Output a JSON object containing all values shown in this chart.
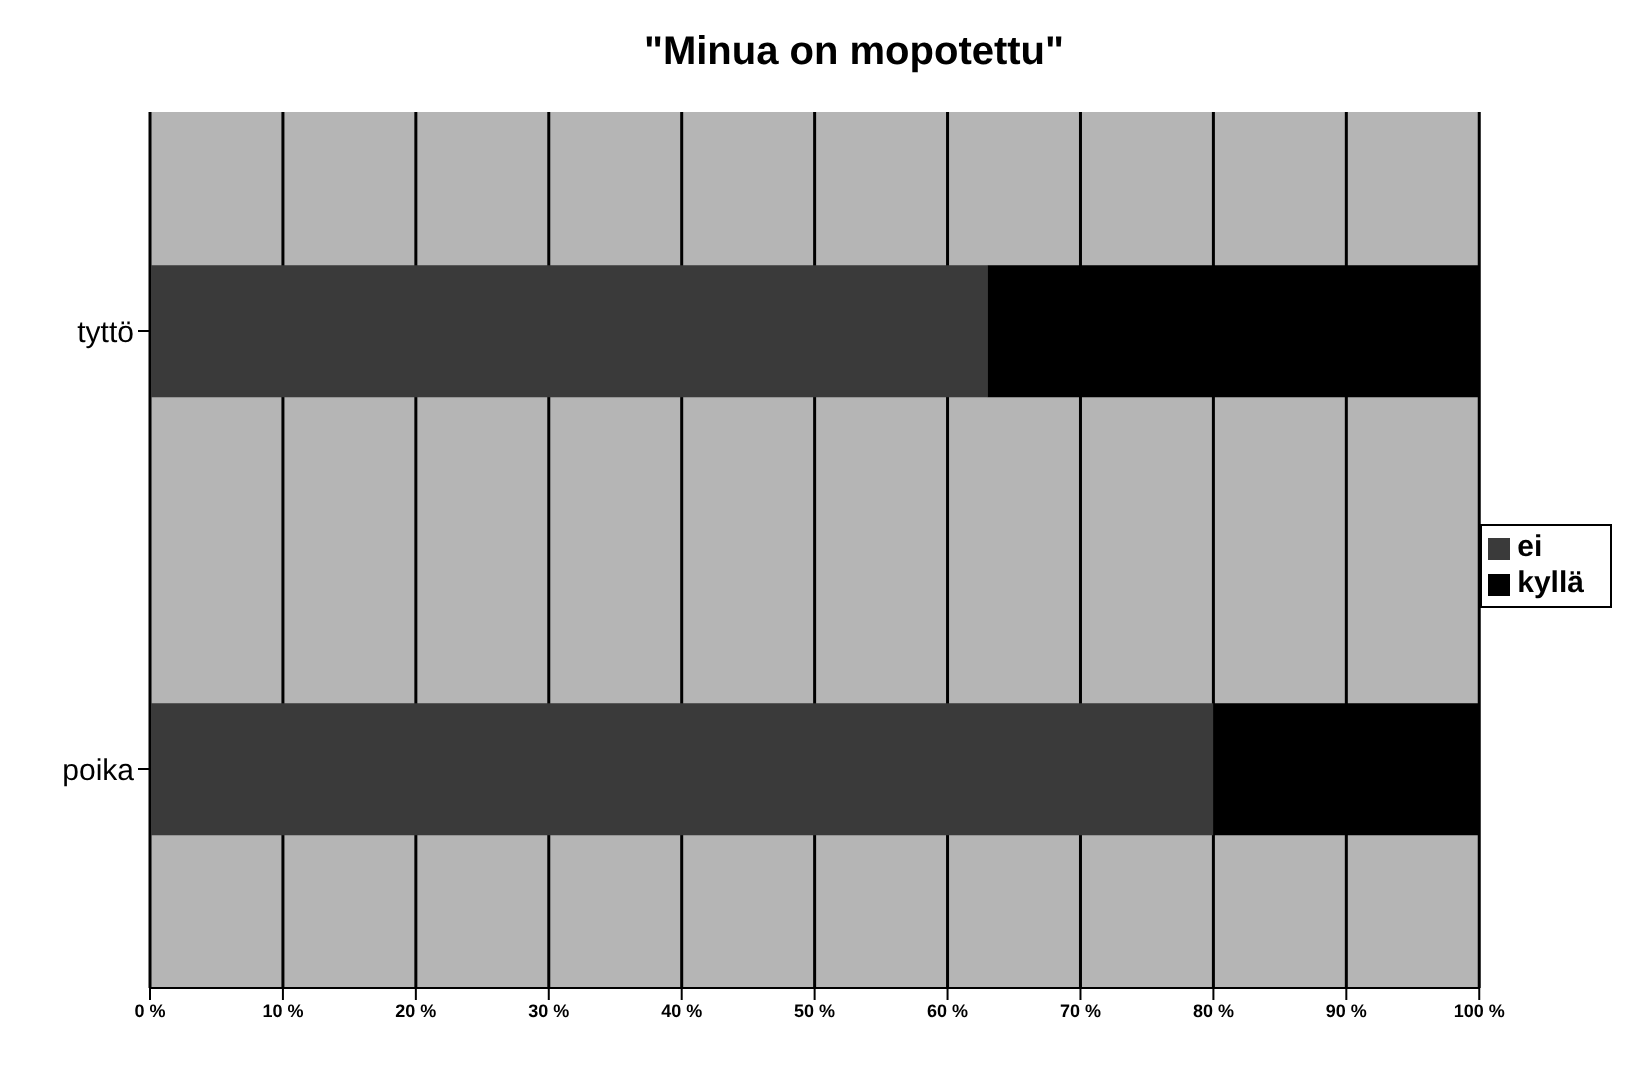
{
  "chart_data": {
    "type": "bar",
    "title": "\"Minua on mopotettu\"",
    "orientation": "horizontal",
    "stacked": true,
    "categories": [
      "tyttö",
      "poika"
    ],
    "series": [
      {
        "name": "ei",
        "color": "#3a3a3a",
        "values": [
          63,
          80
        ]
      },
      {
        "name": "kyllä",
        "color": "#000000",
        "values": [
          37,
          20
        ]
      }
    ],
    "xlim": [
      0,
      100
    ],
    "xticks": [
      {
        "value": 0,
        "label": "0 %"
      },
      {
        "value": 10,
        "label": "10 %"
      },
      {
        "value": 20,
        "label": "20 %"
      },
      {
        "value": 30,
        "label": "30 %"
      },
      {
        "value": 40,
        "label": "40 %"
      },
      {
        "value": 50,
        "label": "50 %"
      },
      {
        "value": 60,
        "label": "60 %"
      },
      {
        "value": 70,
        "label": "70 %"
      },
      {
        "value": 80,
        "label": "80 %"
      },
      {
        "value": 90,
        "label": "90 %"
      },
      {
        "value": 100,
        "label": "100 %"
      }
    ],
    "grid": "x",
    "legend": "right"
  }
}
